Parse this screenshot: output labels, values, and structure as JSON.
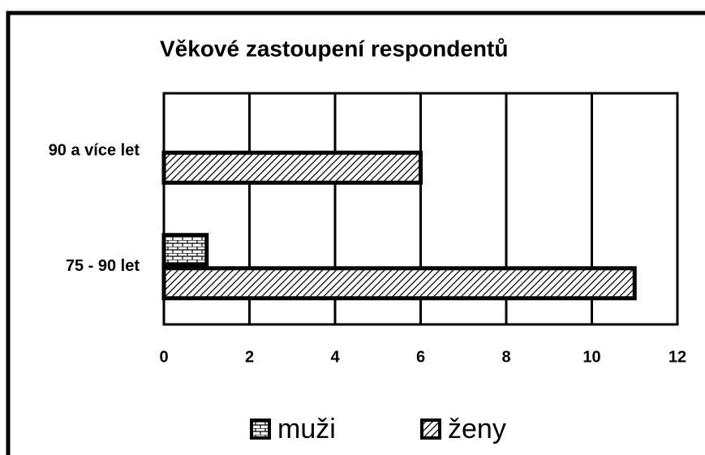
{
  "chart_data": {
    "type": "hbar",
    "title": "Věkové zastoupení respondentů",
    "categories": [
      "90 a více let",
      "75 - 90 let"
    ],
    "series": [
      {
        "name": "muži",
        "pattern": "brick",
        "values": [
          0,
          1
        ]
      },
      {
        "name": "ženy",
        "pattern": "hatch",
        "values": [
          6,
          11
        ]
      }
    ],
    "xlim": [
      0,
      12
    ],
    "xticks": [
      0,
      2,
      4,
      6,
      8,
      10,
      12
    ],
    "grid": true,
    "legend": "bottom"
  }
}
